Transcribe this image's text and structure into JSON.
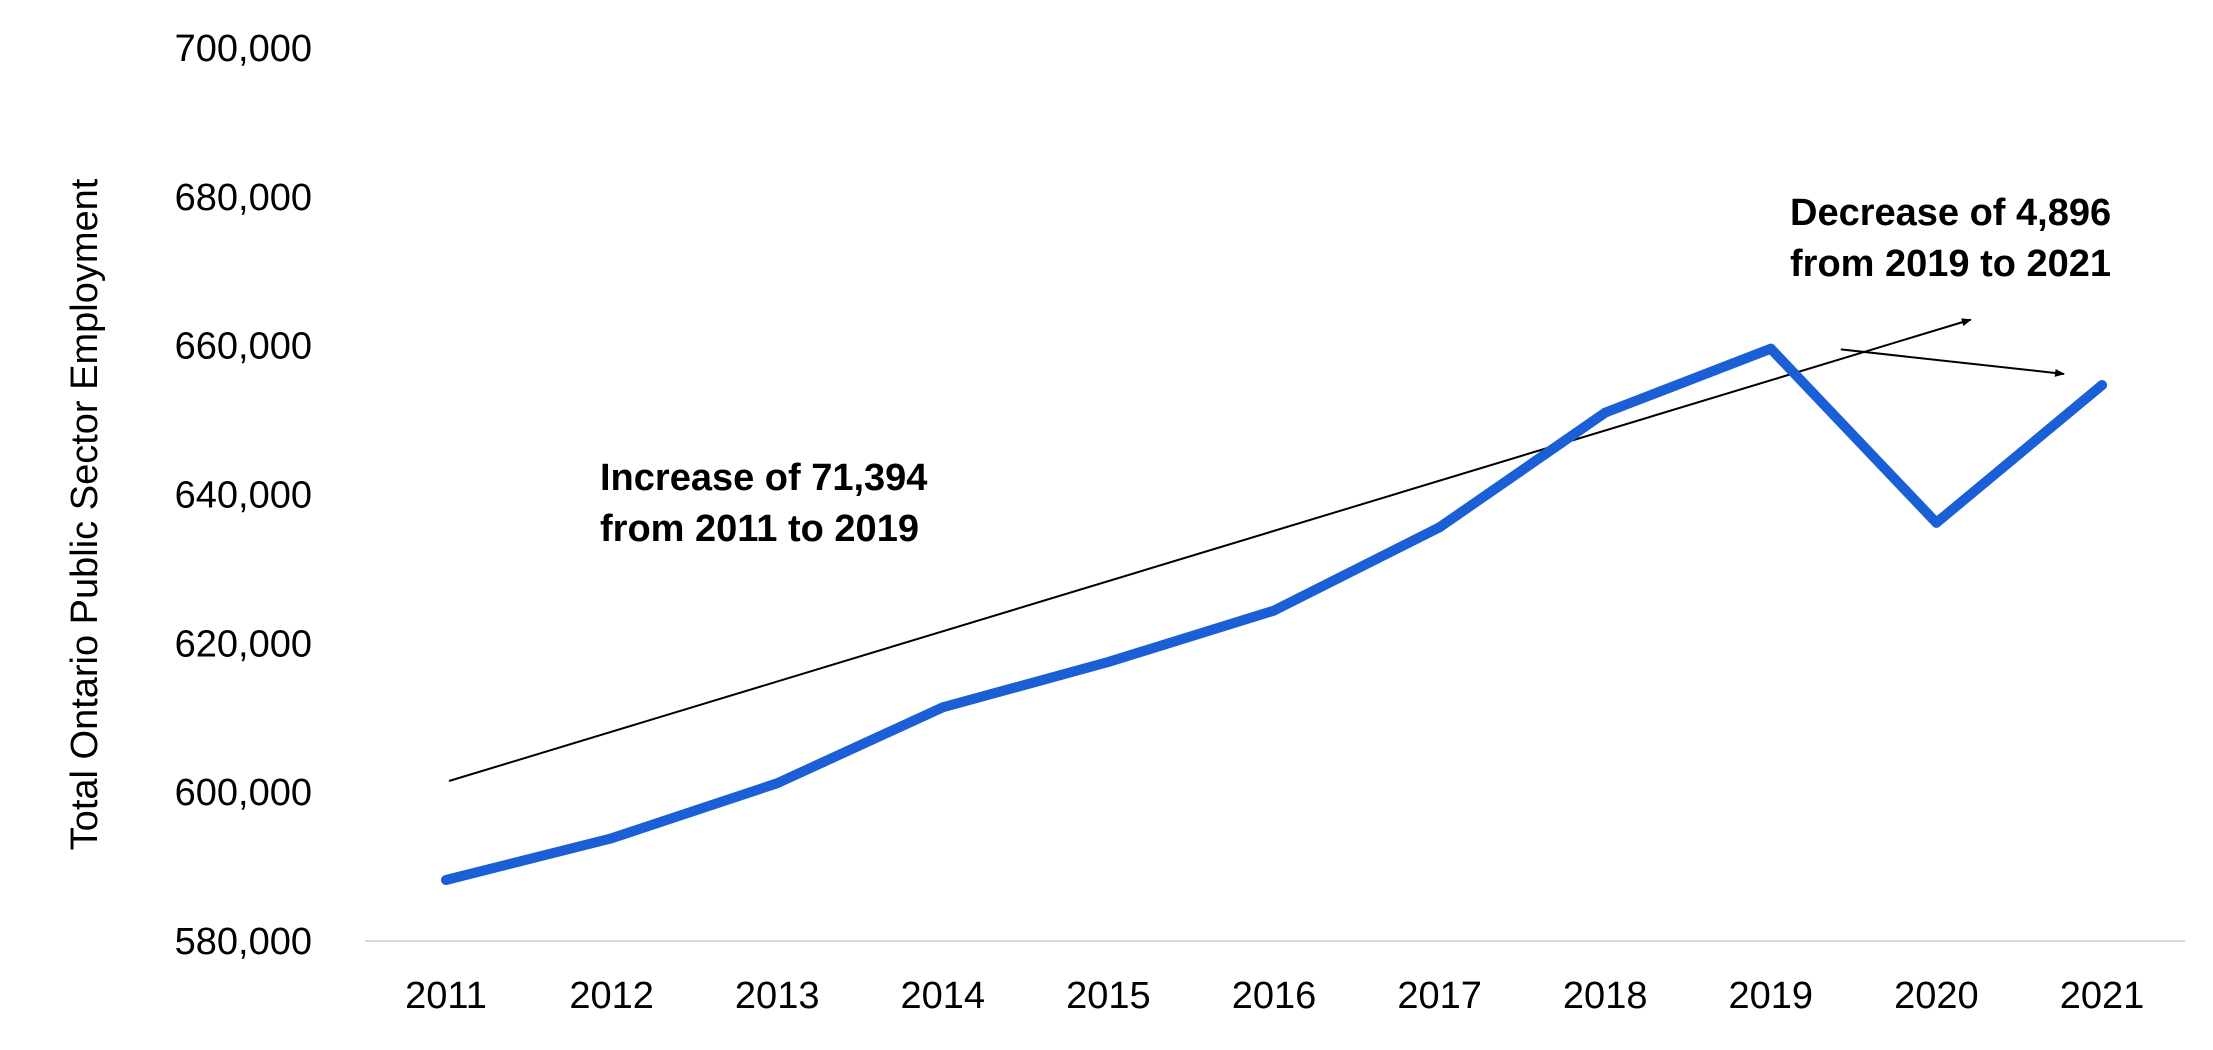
{
  "chart_data": {
    "type": "line",
    "title": "",
    "xlabel": "",
    "ylabel": "Total Ontario Public Sector Employment",
    "categories": [
      "2011",
      "2012",
      "2013",
      "2014",
      "2015",
      "2016",
      "2017",
      "2018",
      "2019",
      "2020",
      "2021"
    ],
    "series": [
      {
        "values": [
          588200,
          593800,
          601200,
          611400,
          617500,
          624400,
          635600,
          651000,
          659594,
          636200,
          654698
        ],
        "color": "#1a5fd6"
      }
    ],
    "ylim": [
      580000,
      700000
    ],
    "yticks": [
      580000,
      600000,
      620000,
      640000,
      660000,
      680000,
      700000
    ],
    "ytick_labels": [
      "580,000",
      "600,000",
      "620,000",
      "640,000",
      "660,000",
      "680,000",
      "700,000"
    ],
    "grid": false,
    "legend": "none",
    "annotations": [
      {
        "lines": [
          "Increase of 71,394",
          "from 2011 to 2019"
        ],
        "from": {
          "x": "2011",
          "y": 601500
        },
        "to": {
          "x": "2019",
          "y": 663500
        }
      },
      {
        "lines": [
          "Decrease of 4,896",
          "from 2019 to 2021"
        ],
        "from": {
          "x": "2019",
          "y": 659500
        },
        "to": {
          "x": "2021",
          "y": 656200
        }
      }
    ]
  }
}
